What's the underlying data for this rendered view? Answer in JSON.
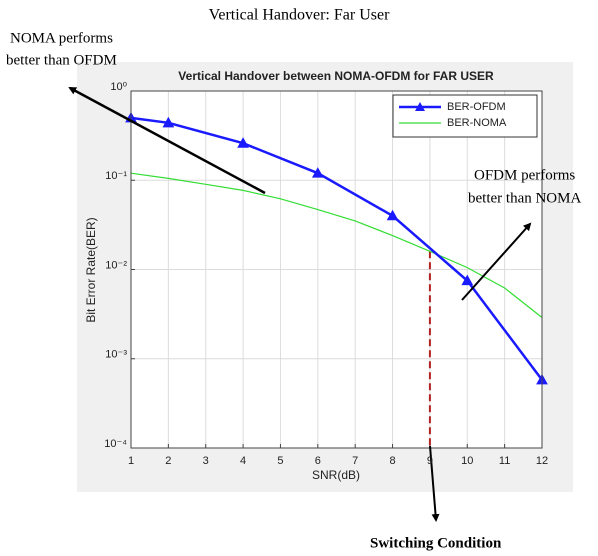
{
  "chart_data": {
    "type": "line",
    "figure_title": "Vertical Handover: Far User",
    "title": "Vertical Handover between NOMA-OFDM for FAR USER",
    "xlabel": "SNR(dB)",
    "ylabel": "Bit Error Rate(BER)",
    "xlim": [
      1,
      12
    ],
    "xticks": [
      1,
      2,
      3,
      4,
      5,
      6,
      7,
      8,
      9,
      10,
      11,
      12
    ],
    "ylim": [
      0.0001,
      1
    ],
    "log_y": true,
    "yticks": [
      {
        "value": 1,
        "label": "10⁰"
      },
      {
        "value": 0.1,
        "label": "10⁻¹"
      },
      {
        "value": 0.01,
        "label": "10⁻²"
      },
      {
        "value": 0.001,
        "label": "10⁻³"
      },
      {
        "value": 0.0001,
        "label": "10⁻⁴"
      }
    ],
    "grid": true,
    "legend": "upper right",
    "series": [
      {
        "name": "BER-OFDM",
        "color": "#1a1aff",
        "marker": "triangle",
        "x": [
          1,
          2,
          4,
          6,
          8,
          10,
          12
        ],
        "values": [
          0.5,
          0.44,
          0.26,
          0.12,
          0.04,
          0.0075,
          0.00058
        ]
      },
      {
        "name": "BER-NOMA",
        "color": "#33dd33",
        "x": [
          1,
          2,
          3,
          4,
          5,
          6,
          7,
          8,
          9,
          10,
          11,
          12
        ],
        "values": [
          0.12,
          0.105,
          0.09,
          0.077,
          0.062,
          0.047,
          0.035,
          0.024,
          0.016,
          0.0105,
          0.0062,
          0.0029
        ]
      }
    ],
    "vertical_line": {
      "x": 9,
      "top": 0.016,
      "color": "#b22222"
    },
    "annotations": [
      {
        "lines": [
          "NOMA performs",
          "better than OFDM"
        ]
      },
      {
        "lines": [
          "OFDM performs",
          "better than NOMA"
        ]
      },
      {
        "lines": [
          "Switching Condition"
        ]
      }
    ]
  }
}
